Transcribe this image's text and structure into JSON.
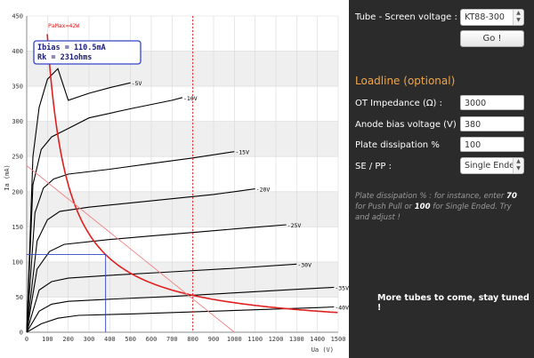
{
  "controls": {
    "tube_label": "Tube - Screen voltage :",
    "tube_value": "KT88-300",
    "go_label": "Go !",
    "loadline_title": "Loadline (optional)",
    "ot_impedance_label": "OT Impedance (Ω) :",
    "ot_impedance_value": "3000",
    "anode_bias_label": "Anode bias voltage (V)",
    "anode_bias_value": "380",
    "plate_dissipation_label": "Plate dissipation %",
    "plate_dissipation_value": "100",
    "se_pp_label": "SE / PP :",
    "se_pp_value": "Single Ended",
    "help_part1": "Plate dissipation % : for instance, enter ",
    "help_bold1": "70",
    "help_part2": " for Push Pull or ",
    "help_bold2": "100",
    "help_part3": " for Single Ended. Try and adjust !",
    "more_tubes": "More tubes to come, stay tuned !"
  },
  "chart_data": {
    "type": "line",
    "xlabel": "Ua (V)",
    "ylabel": "Ia (mA)",
    "xlim": [
      0,
      1500
    ],
    "ylim": [
      0,
      450
    ],
    "xticks": [
      0,
      100,
      200,
      300,
      400,
      500,
      600,
      700,
      800,
      900,
      1000,
      1100,
      1200,
      1300,
      1400,
      1500
    ],
    "yticks": [
      0,
      50,
      100,
      150,
      200,
      250,
      300,
      350,
      400,
      450
    ],
    "grid": true,
    "annotation": {
      "ibias": "Ibias = 110.5mA",
      "rk": "Rk = 231ohms"
    },
    "pamax_label": "PaMax=42W",
    "max_voltage_line": 800,
    "operating_point": {
      "x": 380,
      "y": 110.5
    },
    "loadline": [
      [
        0,
        237
      ],
      [
        1000,
        0
      ]
    ],
    "grid_curves": [
      {
        "name": "-5V",
        "points": [
          [
            0,
            0
          ],
          [
            30,
            250
          ],
          [
            60,
            320
          ],
          [
            100,
            360
          ],
          [
            150,
            375
          ],
          [
            200,
            330
          ],
          [
            300,
            340
          ],
          [
            400,
            348
          ],
          [
            500,
            355
          ]
        ]
      },
      {
        "name": "-10V",
        "points": [
          [
            0,
            0
          ],
          [
            30,
            210
          ],
          [
            70,
            260
          ],
          [
            120,
            278
          ],
          [
            200,
            290
          ],
          [
            300,
            305
          ],
          [
            500,
            318
          ],
          [
            700,
            330
          ],
          [
            750,
            334
          ]
        ]
      },
      {
        "name": "-15V",
        "points": [
          [
            0,
            0
          ],
          [
            40,
            170
          ],
          [
            80,
            205
          ],
          [
            130,
            218
          ],
          [
            200,
            225
          ],
          [
            400,
            232
          ],
          [
            600,
            240
          ],
          [
            800,
            248
          ],
          [
            1000,
            257
          ]
        ]
      },
      {
        "name": "-20V",
        "points": [
          [
            0,
            0
          ],
          [
            50,
            130
          ],
          [
            100,
            160
          ],
          [
            160,
            172
          ],
          [
            300,
            178
          ],
          [
            500,
            184
          ],
          [
            700,
            190
          ],
          [
            900,
            196
          ],
          [
            1100,
            204
          ]
        ]
      },
      {
        "name": "-25V",
        "points": [
          [
            0,
            0
          ],
          [
            50,
            90
          ],
          [
            110,
            115
          ],
          [
            180,
            125
          ],
          [
            400,
            132
          ],
          [
            600,
            137
          ],
          [
            800,
            142
          ],
          [
            1000,
            147
          ],
          [
            1250,
            153
          ]
        ]
      },
      {
        "name": "-30V",
        "points": [
          [
            0,
            0
          ],
          [
            60,
            60
          ],
          [
            120,
            72
          ],
          [
            200,
            77
          ],
          [
            400,
            81
          ],
          [
            700,
            86
          ],
          [
            1000,
            91
          ],
          [
            1300,
            97
          ]
        ]
      },
      {
        "name": "-35V",
        "points": [
          [
            0,
            0
          ],
          [
            60,
            30
          ],
          [
            120,
            40
          ],
          [
            200,
            44
          ],
          [
            400,
            47
          ],
          [
            700,
            51
          ],
          [
            1000,
            56
          ],
          [
            1300,
            61
          ],
          [
            1480,
            64
          ]
        ]
      },
      {
        "name": "-40V",
        "points": [
          [
            0,
            0
          ],
          [
            70,
            12
          ],
          [
            150,
            20
          ],
          [
            250,
            24
          ],
          [
            500,
            26
          ],
          [
            800,
            29
          ],
          [
            1100,
            32
          ],
          [
            1400,
            35
          ],
          [
            1480,
            36
          ]
        ]
      }
    ]
  }
}
